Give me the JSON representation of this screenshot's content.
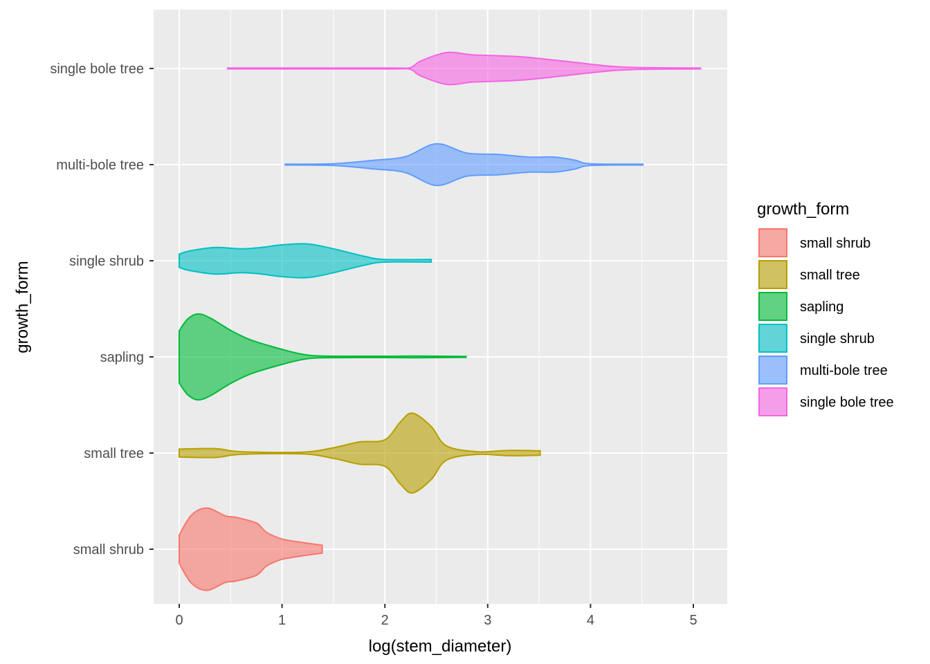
{
  "chart_data": {
    "type": "violin",
    "xlabel": "log(stem_diameter)",
    "ylabel": "growth_form",
    "xlim": [
      -0.26,
      5.34
    ],
    "x_ticks": [
      0,
      1,
      2,
      3,
      4,
      5
    ],
    "x_tick_labels": [
      "0",
      "1",
      "2",
      "3",
      "4",
      "5"
    ],
    "grid": true,
    "legend": {
      "title": "growth_form",
      "placement": "right",
      "entries": [
        "small shrub",
        "small tree",
        "sapling",
        "single shrub",
        "multi-bole tree",
        "single bole tree"
      ]
    },
    "categories": [
      "small shrub",
      "small tree",
      "sapling",
      "single shrub",
      "multi-bole tree",
      "single bole tree"
    ],
    "series": [
      {
        "name": "small shrub",
        "fill": "#F8766D",
        "stroke": "#F8766D",
        "range": [
          0,
          1.39
        ],
        "density": [
          [
            0,
            0.32
          ],
          [
            0.12,
            0.77
          ],
          [
            0.27,
            0.93
          ],
          [
            0.45,
            0.75
          ],
          [
            0.55,
            0.72
          ],
          [
            0.75,
            0.59
          ],
          [
            0.85,
            0.38
          ],
          [
            1.0,
            0.23
          ],
          [
            1.2,
            0.15
          ],
          [
            1.39,
            0.09
          ]
        ]
      },
      {
        "name": "small tree",
        "fill": "#B79F00",
        "stroke": "#B79F00",
        "range": [
          0,
          3.51
        ],
        "density": [
          [
            0,
            0.09
          ],
          [
            0.35,
            0.1
          ],
          [
            0.6,
            0.03
          ],
          [
            1.2,
            0.02
          ],
          [
            1.5,
            0.12
          ],
          [
            1.75,
            0.25
          ],
          [
            2.0,
            0.3
          ],
          [
            2.15,
            0.7
          ],
          [
            2.27,
            0.9
          ],
          [
            2.45,
            0.6
          ],
          [
            2.6,
            0.16
          ],
          [
            2.9,
            0.03
          ],
          [
            3.2,
            0.06
          ],
          [
            3.51,
            0.05
          ]
        ]
      },
      {
        "name": "sapling",
        "fill": "#00BA38",
        "stroke": "#00BA38",
        "range": [
          0,
          2.79
        ],
        "density": [
          [
            0,
            0.59
          ],
          [
            0.08,
            0.85
          ],
          [
            0.18,
            0.97
          ],
          [
            0.3,
            0.88
          ],
          [
            0.5,
            0.6
          ],
          [
            0.7,
            0.38
          ],
          [
            1.0,
            0.17
          ],
          [
            1.2,
            0.06
          ],
          [
            1.4,
            0.02
          ],
          [
            2.0,
            0.015
          ],
          [
            2.3,
            0.02
          ],
          [
            2.79,
            0.01
          ]
        ]
      },
      {
        "name": "single shrub",
        "fill": "#00BFC4",
        "stroke": "#00BFC4",
        "range": [
          0,
          2.45
        ],
        "density": [
          [
            0,
            0.15
          ],
          [
            0.1,
            0.22
          ],
          [
            0.35,
            0.3
          ],
          [
            0.6,
            0.27
          ],
          [
            0.8,
            0.3
          ],
          [
            1.0,
            0.36
          ],
          [
            1.25,
            0.38
          ],
          [
            1.5,
            0.27
          ],
          [
            1.8,
            0.1
          ],
          [
            2.0,
            0.03
          ],
          [
            2.45,
            0.03
          ]
        ]
      },
      {
        "name": "multi-bole tree",
        "fill": "#619CFF",
        "stroke": "#619CFF",
        "range": [
          1.03,
          4.51
        ],
        "density": [
          [
            1.03,
            0.01
          ],
          [
            1.5,
            0.02
          ],
          [
            1.9,
            0.1
          ],
          [
            2.2,
            0.18
          ],
          [
            2.5,
            0.47
          ],
          [
            2.8,
            0.26
          ],
          [
            3.1,
            0.23
          ],
          [
            3.4,
            0.17
          ],
          [
            3.65,
            0.17
          ],
          [
            3.85,
            0.1
          ],
          [
            4.0,
            0.02
          ],
          [
            4.51,
            0.01
          ]
        ]
      },
      {
        "name": "single bole tree",
        "fill": "#F564E3",
        "stroke": "#F564E3",
        "range": [
          0.47,
          5.07
        ],
        "density": [
          [
            0.47,
            0.01
          ],
          [
            1.5,
            0.01
          ],
          [
            2.1,
            0.01
          ],
          [
            2.25,
            0.02
          ],
          [
            2.35,
            0.17
          ],
          [
            2.6,
            0.36
          ],
          [
            2.85,
            0.31
          ],
          [
            3.2,
            0.28
          ],
          [
            3.4,
            0.25
          ],
          [
            3.8,
            0.15
          ],
          [
            4.2,
            0.05
          ],
          [
            4.5,
            0.02
          ],
          [
            5.07,
            0.01
          ]
        ]
      }
    ]
  }
}
